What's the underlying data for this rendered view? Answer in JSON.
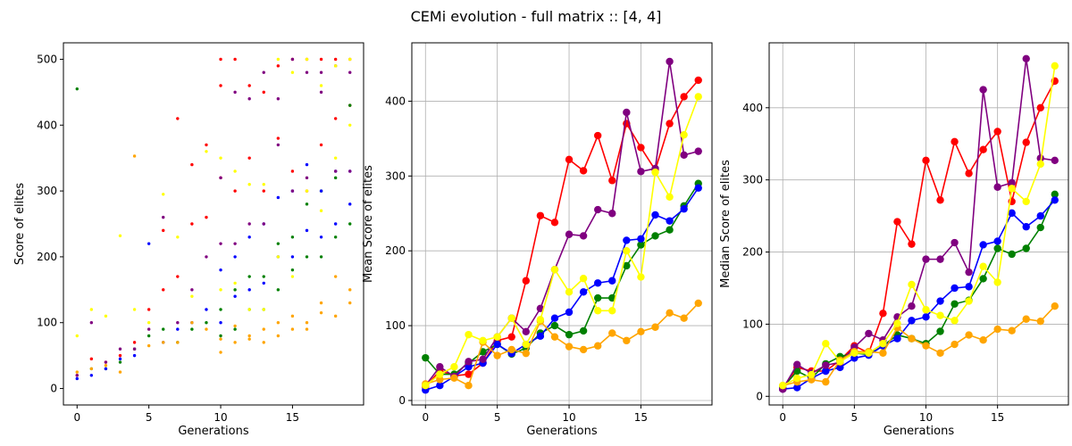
{
  "figure": {
    "suptitle": "CEMi evolution  - full matrix :: [4, 4]"
  },
  "series_colors": [
    "red",
    "green",
    "blue",
    "purple",
    "orange",
    "yellow"
  ],
  "chart_data": [
    {
      "type": "scatter",
      "xlabel": "Generations",
      "ylabel": "Score of elites",
      "xlim": [
        -0.95,
        19.95
      ],
      "ylim": [
        -25,
        525
      ],
      "xticks": [
        0,
        5,
        10,
        15
      ],
      "yticks": [
        0,
        100,
        200,
        300,
        400,
        500
      ],
      "grid": false,
      "series": [
        {
          "color": "red",
          "x": [
            0,
            1,
            2,
            3,
            4,
            5,
            6,
            6,
            7,
            7,
            8,
            8,
            9,
            9,
            10,
            10,
            10,
            11,
            11,
            12,
            12,
            13,
            13,
            14,
            14,
            15,
            15,
            16,
            16,
            17,
            17,
            18,
            18,
            19,
            19
          ],
          "y": [
            20,
            45,
            40,
            50,
            70,
            120,
            150,
            240,
            170,
            410,
            250,
            340,
            260,
            370,
            320,
            460,
            500,
            300,
            500,
            350,
            460,
            300,
            450,
            380,
            490,
            330,
            500,
            300,
            500,
            370,
            500,
            410,
            500,
            430,
            500
          ]
        },
        {
          "color": "green",
          "x": [
            0,
            1,
            2,
            3,
            4,
            5,
            6,
            7,
            8,
            9,
            10,
            10,
            11,
            11,
            12,
            12,
            13,
            13,
            14,
            14,
            15,
            15,
            16,
            16,
            17,
            17,
            18,
            18,
            19,
            19
          ],
          "y": [
            455,
            30,
            30,
            40,
            60,
            80,
            90,
            70,
            90,
            100,
            80,
            120,
            90,
            150,
            120,
            170,
            120,
            170,
            150,
            220,
            180,
            230,
            200,
            280,
            200,
            300,
            230,
            320,
            250,
            430
          ]
        },
        {
          "color": "blue",
          "x": [
            0,
            1,
            2,
            3,
            4,
            5,
            6,
            7,
            8,
            9,
            10,
            10,
            11,
            11,
            12,
            12,
            13,
            13,
            14,
            14,
            15,
            15,
            16,
            16,
            17,
            17,
            18,
            18,
            19,
            19
          ],
          "y": [
            15,
            20,
            30,
            45,
            50,
            220,
            70,
            90,
            100,
            120,
            100,
            180,
            140,
            200,
            150,
            230,
            160,
            250,
            200,
            290,
            200,
            300,
            240,
            340,
            230,
            300,
            250,
            330,
            280,
            330
          ]
        },
        {
          "color": "purple",
          "x": [
            0,
            1,
            2,
            3,
            4,
            5,
            6,
            7,
            8,
            9,
            10,
            10,
            11,
            11,
            12,
            12,
            13,
            13,
            14,
            14,
            15,
            15,
            16,
            16,
            17,
            17,
            18,
            18,
            19,
            19
          ],
          "y": [
            20,
            100,
            40,
            60,
            60,
            90,
            260,
            100,
            150,
            200,
            220,
            320,
            220,
            450,
            250,
            440,
            250,
            480,
            370,
            440,
            300,
            500,
            320,
            480,
            450,
            480,
            330,
            490,
            330,
            480
          ]
        },
        {
          "color": "orange",
          "x": [
            0,
            1,
            2,
            3,
            4,
            5,
            6,
            7,
            8,
            9,
            10,
            10,
            11,
            11,
            12,
            12,
            13,
            13,
            14,
            14,
            15,
            15,
            16,
            16,
            17,
            17,
            18,
            18,
            19,
            19
          ],
          "y": [
            25,
            30,
            35,
            25,
            353,
            65,
            70,
            70,
            100,
            90,
            75,
            55,
            70,
            95,
            75,
            80,
            90,
            70,
            80,
            100,
            90,
            110,
            100,
            90,
            115,
            130,
            110,
            170,
            130,
            150
          ]
        },
        {
          "color": "yellow",
          "x": [
            0,
            1,
            2,
            3,
            4,
            5,
            6,
            7,
            8,
            9,
            10,
            10,
            11,
            11,
            12,
            12,
            13,
            13,
            14,
            14,
            15,
            15,
            16,
            16,
            17,
            17,
            18,
            18,
            19,
            19
          ],
          "y": [
            80,
            120,
            110,
            232,
            120,
            100,
            295,
            230,
            140,
            360,
            150,
            350,
            160,
            330,
            120,
            310,
            120,
            310,
            200,
            500,
            170,
            480,
            300,
            500,
            270,
            460,
            350,
            490,
            400,
            500
          ]
        }
      ]
    },
    {
      "type": "line",
      "xlabel": "Generations",
      "ylabel": "Mean Score of elites",
      "xlim": [
        -0.95,
        19.95
      ],
      "ylim": [
        -6,
        478
      ],
      "xticks": [
        0,
        5,
        10,
        15
      ],
      "yticks": [
        0,
        100,
        200,
        300,
        400
      ],
      "grid": true,
      "x": [
        0,
        1,
        2,
        3,
        4,
        5,
        6,
        7,
        8,
        9,
        10,
        11,
        12,
        13,
        14,
        15,
        16,
        17,
        18,
        19
      ],
      "series": [
        {
          "color": "red",
          "values": [
            18,
            40,
            33,
            35,
            50,
            80,
            85,
            160,
            247,
            238,
            322,
            307,
            354,
            294,
            370,
            338,
            308,
            370,
            406,
            428
          ]
        },
        {
          "color": "green",
          "values": [
            57,
            35,
            35,
            50,
            65,
            75,
            62,
            70,
            90,
            100,
            88,
            93,
            137,
            137,
            180,
            208,
            220,
            228,
            260,
            290
          ]
        },
        {
          "color": "blue",
          "values": [
            14,
            20,
            32,
            45,
            50,
            75,
            63,
            75,
            86,
            110,
            118,
            145,
            157,
            160,
            214,
            216,
            248,
            240,
            256,
            284
          ]
        },
        {
          "color": "purple",
          "values": [
            20,
            45,
            32,
            52,
            55,
            85,
            110,
            92,
            123,
            175,
            222,
            220,
            255,
            250,
            385,
            306,
            310,
            453,
            328,
            333
          ]
        },
        {
          "color": "orange",
          "values": [
            22,
            28,
            30,
            20,
            78,
            60,
            68,
            63,
            106,
            85,
            72,
            68,
            73,
            90,
            80,
            92,
            98,
            117,
            110,
            130
          ]
        },
        {
          "color": "yellow",
          "values": [
            20,
            35,
            45,
            88,
            80,
            85,
            110,
            75,
            108,
            175,
            145,
            163,
            120,
            120,
            200,
            165,
            305,
            272,
            355,
            406
          ]
        }
      ]
    },
    {
      "type": "line",
      "xlabel": "Generations",
      "ylabel": "Median Score of elites",
      "xlim": [
        -0.95,
        19.95
      ],
      "ylim": [
        -12,
        490
      ],
      "xticks": [
        0,
        5,
        10,
        15
      ],
      "yticks": [
        0,
        100,
        200,
        300,
        400
      ],
      "grid": true,
      "x": [
        0,
        1,
        2,
        3,
        4,
        5,
        6,
        7,
        8,
        9,
        10,
        11,
        12,
        13,
        14,
        15,
        16,
        17,
        18,
        19
      ],
      "series": [
        {
          "color": "red",
          "values": [
            10,
            40,
            35,
            35,
            50,
            70,
            60,
            115,
            242,
            211,
            327,
            272,
            353,
            309,
            342,
            367,
            270,
            352,
            400,
            437
          ]
        },
        {
          "color": "green",
          "values": [
            12,
            35,
            25,
            45,
            55,
            60,
            58,
            70,
            85,
            80,
            73,
            90,
            128,
            133,
            163,
            205,
            197,
            205,
            234,
            280
          ]
        },
        {
          "color": "blue",
          "values": [
            10,
            12,
            25,
            35,
            40,
            53,
            57,
            70,
            80,
            105,
            110,
            132,
            150,
            152,
            210,
            215,
            254,
            235,
            250,
            272
          ]
        },
        {
          "color": "purple",
          "values": [
            10,
            44,
            32,
            43,
            47,
            68,
            87,
            78,
            110,
            125,
            190,
            190,
            213,
            172,
            425,
            290,
            296,
            468,
            330,
            327
          ]
        },
        {
          "color": "orange",
          "values": [
            15,
            20,
            23,
            20,
            50,
            62,
            62,
            60,
            95,
            80,
            70,
            60,
            72,
            85,
            78,
            93,
            91,
            107,
            104,
            125
          ]
        },
        {
          "color": "yellow",
          "values": [
            15,
            25,
            30,
            73,
            48,
            60,
            60,
            73,
            101,
            155,
            120,
            112,
            105,
            132,
            180,
            158,
            288,
            270,
            322,
            458
          ]
        }
      ]
    }
  ]
}
